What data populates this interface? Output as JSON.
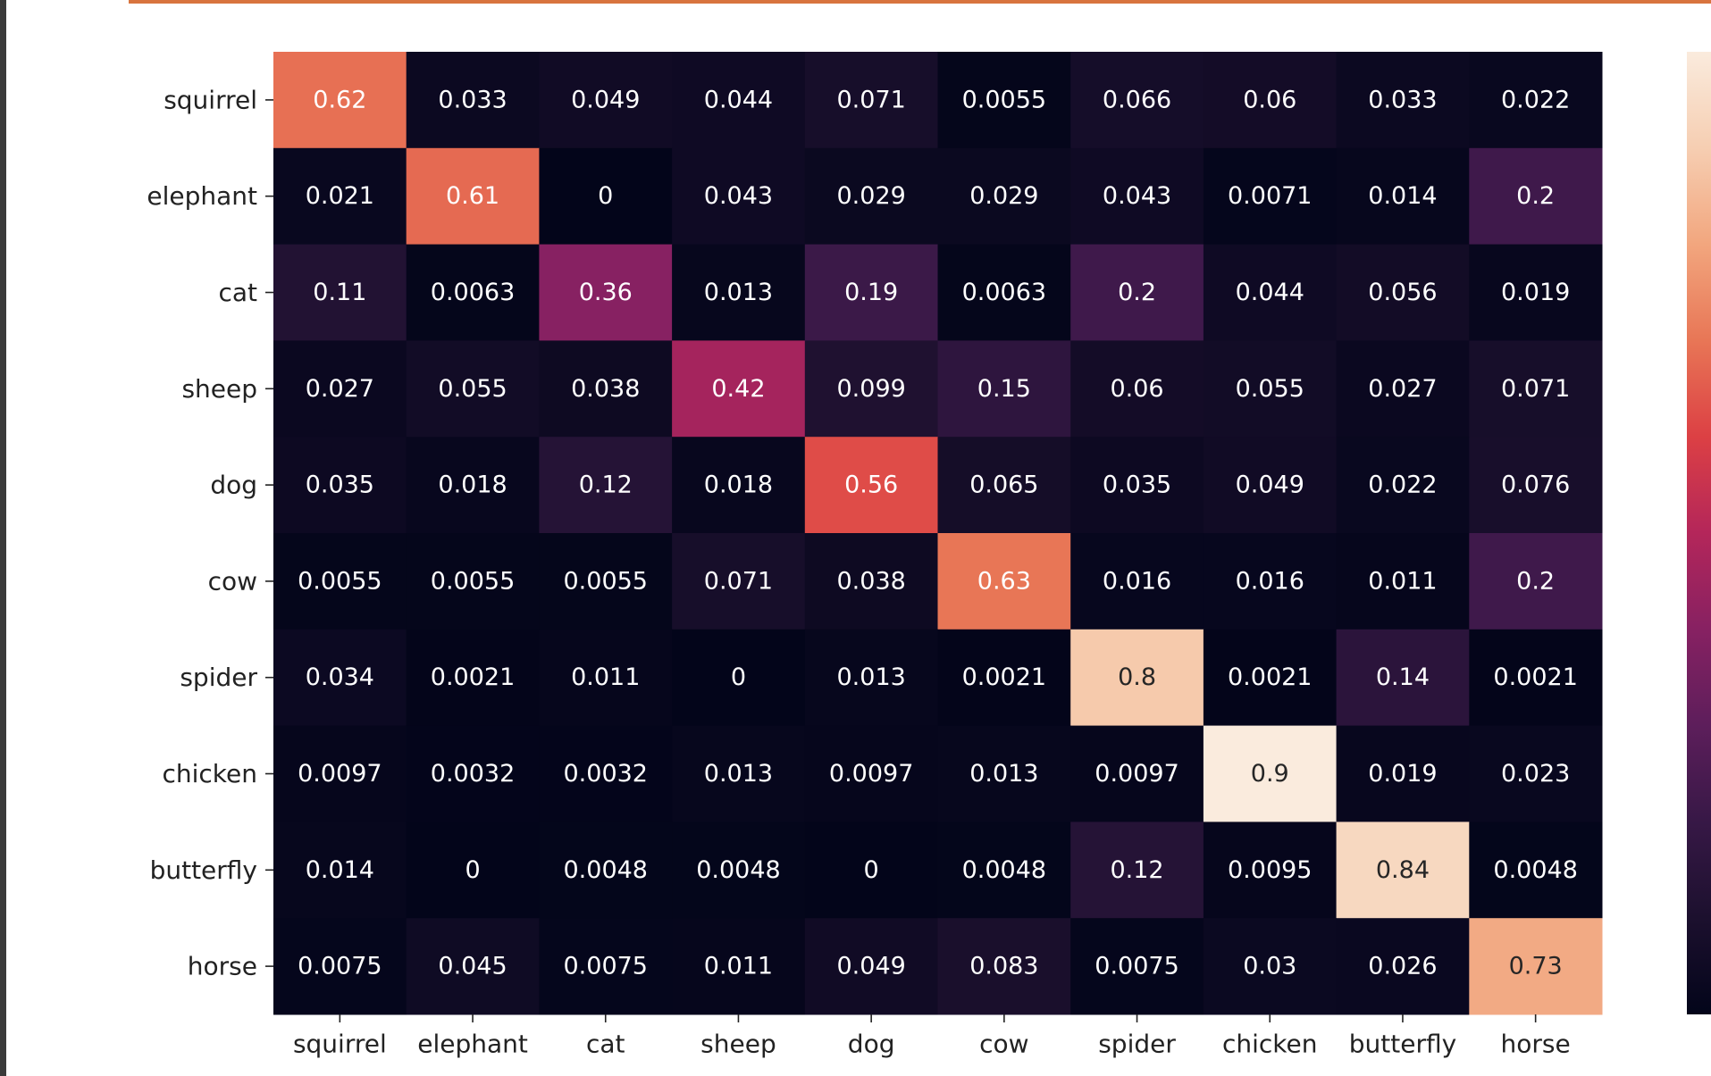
{
  "chart_data": {
    "type": "heatmap",
    "title": "",
    "xlabel": "",
    "ylabel": "",
    "x_categories": [
      "squirrel",
      "elephant",
      "cat",
      "sheep",
      "dog",
      "cow",
      "spider",
      "chicken",
      "butterfly",
      "horse"
    ],
    "y_categories": [
      "squirrel",
      "elephant",
      "cat",
      "sheep",
      "dog",
      "cow",
      "spider",
      "chicken",
      "butterfly",
      "horse"
    ],
    "values": [
      [
        0.62,
        0.033,
        0.049,
        0.044,
        0.071,
        0.0055,
        0.066,
        0.06,
        0.033,
        0.022
      ],
      [
        0.021,
        0.61,
        0,
        0.043,
        0.029,
        0.029,
        0.043,
        0.0071,
        0.014,
        0.2
      ],
      [
        0.11,
        0.0063,
        0.36,
        0.013,
        0.19,
        0.0063,
        0.2,
        0.044,
        0.056,
        0.019
      ],
      [
        0.027,
        0.055,
        0.038,
        0.42,
        0.099,
        0.15,
        0.06,
        0.055,
        0.027,
        0.071
      ],
      [
        0.035,
        0.018,
        0.12,
        0.018,
        0.56,
        0.065,
        0.035,
        0.049,
        0.022,
        0.076
      ],
      [
        0.0055,
        0.0055,
        0.0055,
        0.071,
        0.038,
        0.63,
        0.016,
        0.016,
        0.011,
        0.2
      ],
      [
        0.034,
        0.0021,
        0.011,
        0,
        0.013,
        0.0021,
        0.8,
        0.0021,
        0.14,
        0.0021
      ],
      [
        0.0097,
        0.0032,
        0.0032,
        0.013,
        0.0097,
        0.013,
        0.0097,
        0.9,
        0.019,
        0.023
      ],
      [
        0.014,
        0,
        0.0048,
        0.0048,
        0,
        0.0048,
        0.12,
        0.0095,
        0.84,
        0.0048
      ],
      [
        0.0075,
        0.045,
        0.0075,
        0.011,
        0.049,
        0.083,
        0.0075,
        0.03,
        0.026,
        0.73
      ]
    ],
    "color_range": [
      0,
      0.9
    ],
    "colormap": "rocket",
    "annotations": true,
    "grid": false,
    "colorbar": "right, partially visible"
  },
  "colors": {
    "page_background": "#ffffff",
    "left_frame": "#3b3b3b",
    "top_accent": "#d8743e",
    "tick_text": "#222222",
    "annotation_text_dark_cells": "#ffffff",
    "annotation_text_light_cells": "#262626"
  }
}
